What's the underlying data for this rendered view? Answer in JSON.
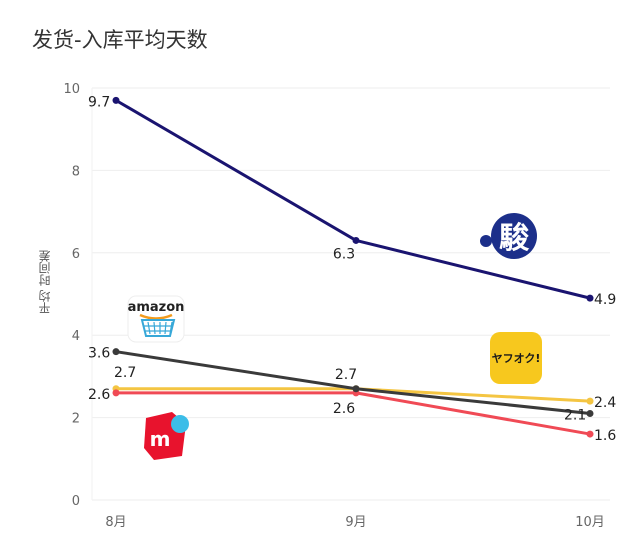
{
  "chart_data": {
    "type": "line",
    "title": "发货-入库平均天数",
    "ylabel": "平均 时间差",
    "xlabel": "",
    "categories": [
      "8月",
      "9月",
      "10月"
    ],
    "ylim": [
      0,
      10
    ],
    "yticks": [
      0,
      2,
      4,
      6,
      8,
      10
    ],
    "grid": true,
    "series": [
      {
        "key": "dark-navy",
        "color": "#1a1470",
        "values": [
          9.7,
          6.3,
          4.9
        ],
        "labels": [
          "9.7",
          "6.3",
          "4.9"
        ],
        "icon": "jp-kanji-bank-logo-icon"
      },
      {
        "key": "dark-gray",
        "color": "#3a3a3a",
        "values": [
          3.6,
          2.7,
          2.1
        ],
        "labels": [
          "3.6",
          "2.7",
          "2.1"
        ],
        "icon": "amazon-logo-icon"
      },
      {
        "key": "yellow",
        "color": "#f4c542",
        "values": [
          2.7,
          2.7,
          2.4
        ],
        "labels": [
          "2.7",
          "",
          "2.4"
        ],
        "icon": "yahuoku-logo-icon"
      },
      {
        "key": "red",
        "color": "#f04a55",
        "values": [
          2.6,
          2.6,
          1.6
        ],
        "labels": [
          "2.6",
          "2.6",
          "1.6"
        ],
        "icon": "mercari-logo-icon"
      }
    ]
  },
  "logos": {
    "amazon": "amazon",
    "yahuoku": "ヤフオク!",
    "bank": "駿",
    "mercari": "m"
  }
}
